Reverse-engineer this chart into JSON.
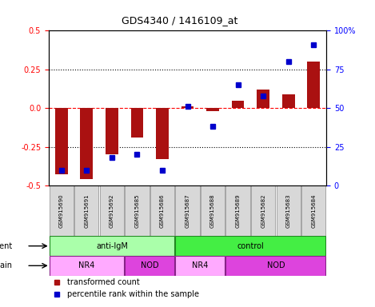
{
  "title": "GDS4340 / 1416109_at",
  "samples": [
    "GSM915690",
    "GSM915691",
    "GSM915692",
    "GSM915685",
    "GSM915686",
    "GSM915687",
    "GSM915688",
    "GSM915689",
    "GSM915682",
    "GSM915683",
    "GSM915684"
  ],
  "transformed_count": [
    -0.43,
    -0.46,
    -0.3,
    -0.19,
    -0.33,
    0.01,
    -0.02,
    0.05,
    0.12,
    0.09,
    0.3
  ],
  "percentile_rank": [
    10,
    10,
    18,
    20,
    10,
    51,
    38,
    65,
    58,
    80,
    91
  ],
  "bar_color": "#aa1111",
  "dot_color": "#0000cc",
  "ylim_left": [
    -0.5,
    0.5
  ],
  "ylim_right": [
    0,
    100
  ],
  "yticks_left": [
    -0.5,
    -0.25,
    0.0,
    0.25,
    0.5
  ],
  "yticks_right": [
    0,
    25,
    50,
    75,
    100
  ],
  "ytick_labels_right": [
    "0",
    "25",
    "50",
    "75",
    "100%"
  ],
  "hline_dotted": [
    0.25,
    -0.25
  ],
  "hline_dashed_red": 0.0,
  "agent_groups": [
    {
      "label": "anti-IgM",
      "start": 0,
      "end": 5,
      "color": "#aaffaa"
    },
    {
      "label": "control",
      "start": 5,
      "end": 11,
      "color": "#44ee44"
    }
  ],
  "strain_groups": [
    {
      "label": "NR4",
      "start": 0,
      "end": 3,
      "color": "#ffaaff"
    },
    {
      "label": "NOD",
      "start": 3,
      "end": 5,
      "color": "#dd44dd"
    },
    {
      "label": "NR4",
      "start": 5,
      "end": 7,
      "color": "#ffaaff"
    },
    {
      "label": "NOD",
      "start": 7,
      "end": 11,
      "color": "#dd44dd"
    }
  ],
  "bar_width": 0.5,
  "title_fontsize": 9,
  "tick_fontsize": 7,
  "label_fontsize": 7,
  "sample_fontsize": 5
}
